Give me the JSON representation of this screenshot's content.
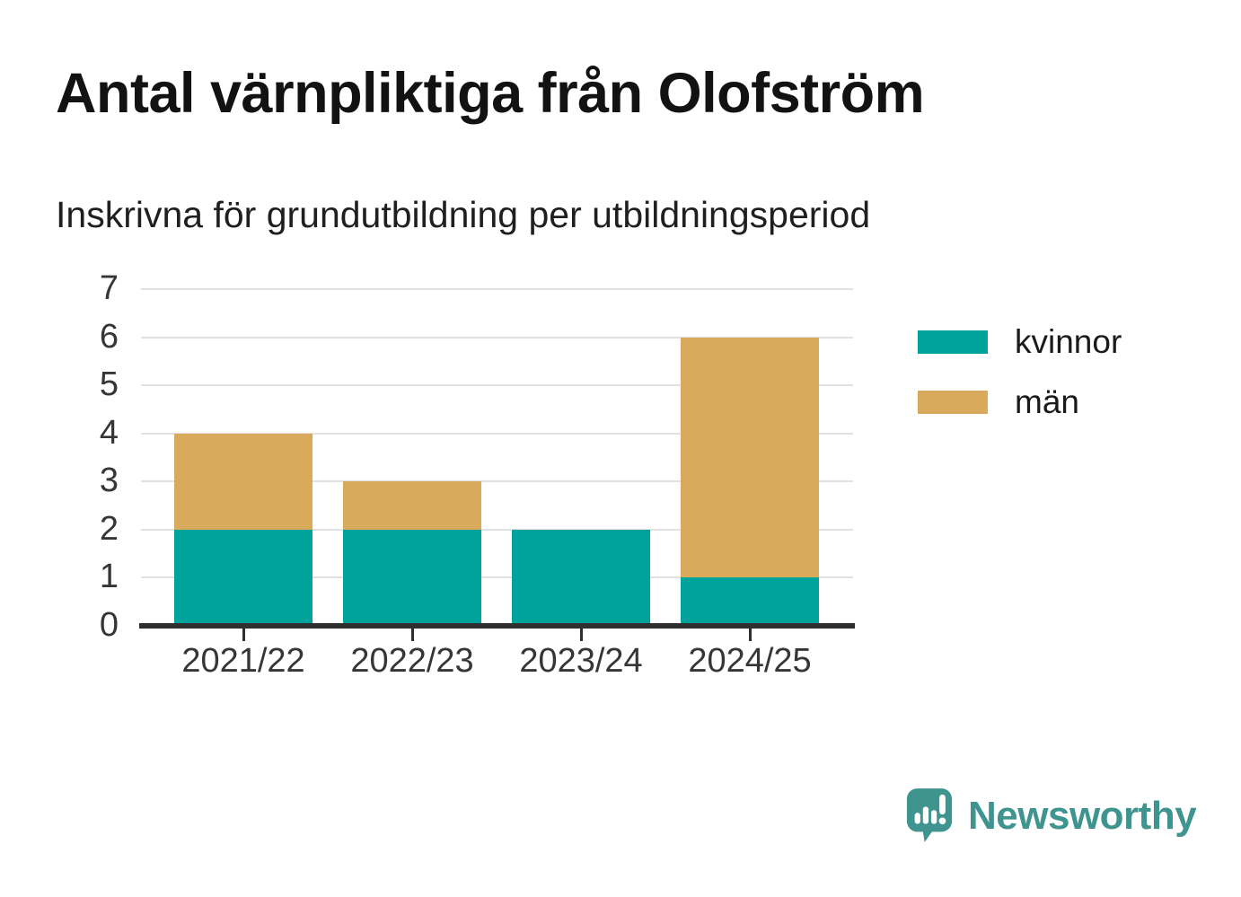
{
  "page": {
    "background": "#ffffff"
  },
  "chart_data": {
    "type": "bar",
    "stacked": true,
    "title": "Antal värnpliktiga från Olofström",
    "subtitle": "Inskrivna för grundutbildning per utbildningsperiod",
    "categories": [
      "2021/22",
      "2022/23",
      "2023/24",
      "2024/25"
    ],
    "series": [
      {
        "name": "kvinnor",
        "color": "#00a39b",
        "values": [
          2,
          2,
          2,
          1
        ]
      },
      {
        "name": "män",
        "color": "#d9aa5c",
        "values": [
          2,
          1,
          0,
          5
        ]
      }
    ],
    "ylim": [
      0,
      7
    ],
    "y_ticks": [
      0,
      1,
      2,
      3,
      4,
      5,
      6,
      7
    ],
    "grid": true,
    "legend_position": "right",
    "colors": {
      "title": "#121212",
      "subtitle": "#1f1f1f",
      "axis_text": "#363636",
      "grid": "#e1e1e1",
      "axis_line": "#2f2f2f"
    }
  },
  "branding": {
    "logo_text": "Newsworthy",
    "logo_color": "#3f948f",
    "logo_icon": "speech-bubble-bar-chart-icon"
  }
}
